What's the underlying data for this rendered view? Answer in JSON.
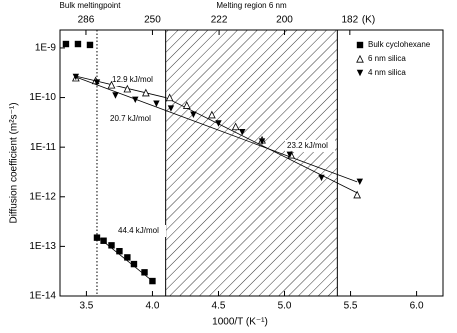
{
  "chart_data": {
    "type": "scatter",
    "x_label": "1000/T (K⁻¹)",
    "y_label": "Diffusion coefficient (m²s⁻¹)",
    "x2_label": "(K)",
    "xlim": [
      3.3,
      6.2
    ],
    "xticks": [
      3.5,
      {
        "value": 4,
        "label": "4.0"
      },
      4.5,
      {
        "value": 5,
        "label": "5.0"
      },
      5.5,
      {
        "value": 6,
        "label": "6.0"
      }
    ],
    "x2ticks": [
      286,
      250,
      222,
      200,
      182
    ],
    "ylim": [
      1e-14,
      2.3e-09
    ],
    "log_y": true,
    "yticks": [
      {
        "value": 1e-14,
        "label": "1E-14"
      },
      {
        "value": 1e-13,
        "label": "1E-13"
      },
      {
        "value": 1e-12,
        "label": "1E-12"
      },
      {
        "value": 1e-11,
        "label": "1E-11"
      },
      {
        "value": 1e-10,
        "label": "1E-10"
      },
      {
        "value": 1e-09,
        "label": "1E-9"
      }
    ],
    "legend": "top-right",
    "series": [
      {
        "name": "Bulk cyclohexane",
        "marker": "square",
        "color": "#000000",
        "x": [
          3.345,
          3.436,
          3.527,
          3.58,
          3.63,
          3.69,
          3.75,
          3.81,
          3.86,
          3.94,
          4.0
        ],
        "values": [
          1.2e-09,
          1.2e-09,
          1.15e-09,
          1.5e-13,
          1.3e-13,
          1.05e-13,
          8e-14,
          6e-14,
          4.4e-14,
          3e-14,
          2e-14
        ]
      },
      {
        "name": "6 nm silica",
        "marker": "triangle-open",
        "color": "#000000",
        "x": [
          3.42,
          3.57,
          3.69,
          3.81,
          3.95,
          4.13,
          4.26,
          4.45,
          4.63,
          4.83,
          5.05,
          5.55
        ],
        "values": [
          2.5e-10,
          2.2e-10,
          1.8e-10,
          1.5e-10,
          1.25e-10,
          1e-10,
          7e-11,
          4.5e-11,
          2.6e-11,
          1.4e-11,
          7e-12,
          1.1e-12
        ]
      },
      {
        "name": "4 nm silica",
        "marker": "triangle-down",
        "color": "#000000",
        "x": [
          3.42,
          3.58,
          3.72,
          3.87,
          4.03,
          4.14,
          4.31,
          4.5,
          4.68,
          4.83,
          5.04,
          5.28,
          5.57
        ],
        "values": [
          2.6e-10,
          2e-10,
          1.1e-10,
          9e-11,
          7.5e-11,
          6e-11,
          4.5e-11,
          3e-11,
          2e-11,
          1.3e-11,
          7e-12,
          2.4e-12,
          2e-12
        ]
      }
    ],
    "fits": [
      {
        "label": "12.9 kJ/mol",
        "x": [
          3.42,
          4.1
        ],
        "values": [
          2.7e-10,
          1e-10
        ]
      },
      {
        "label": "20.7 kJ/mol",
        "x": [
          3.42,
          5.55
        ],
        "values": [
          2.6e-10,
          2e-12
        ]
      },
      {
        "label": "23.2 kJ/mol",
        "x": [
          4.1,
          5.55
        ],
        "values": [
          1e-10,
          1.2e-12
        ]
      },
      {
        "label": "44.4 kJ/mol",
        "x": [
          3.58,
          4.0
        ],
        "values": [
          1.6e-13,
          2e-14
        ]
      }
    ],
    "bulk_melting": {
      "label": "Bulk meltingpoint",
      "x": 3.58
    },
    "melting_region": {
      "label": "Melting region 6 nm",
      "xlim": [
        4.1,
        5.4
      ]
    }
  }
}
